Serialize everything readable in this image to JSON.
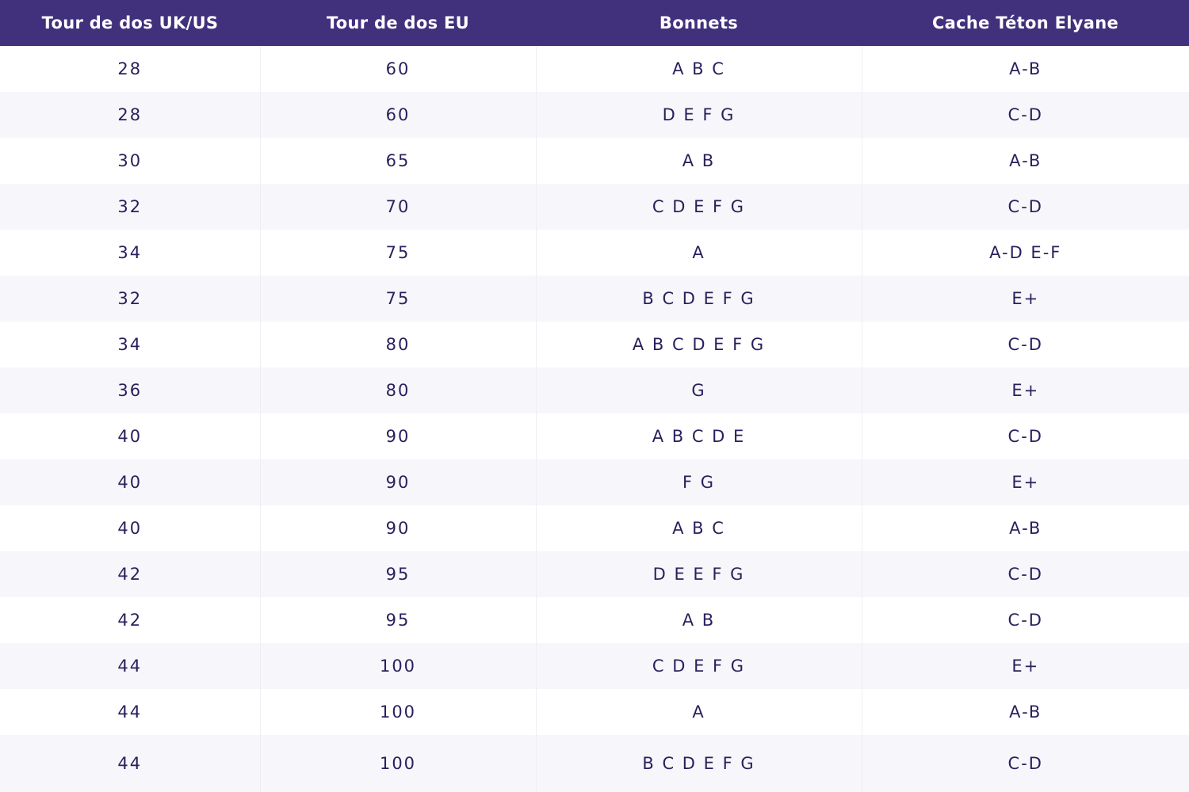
{
  "colors": {
    "header_bg": "#41317c",
    "header_text": "#ffffff",
    "cell_text": "#2a1f5c",
    "stripe": "#f7f6fa"
  },
  "table": {
    "headers": [
      "Tour de dos UK/US",
      "Tour de dos EU",
      "Bonnets",
      "Cache Téton Elyane"
    ],
    "rows": [
      [
        "28",
        "60",
        "A B C",
        "A-B"
      ],
      [
        "28",
        "60",
        "D E F G",
        "C-D"
      ],
      [
        "30",
        "65",
        "A B",
        "A-B"
      ],
      [
        "32",
        "70",
        "C D E F G",
        "C-D"
      ],
      [
        "34",
        "75",
        "A",
        "A-D E-F"
      ],
      [
        "32",
        "75",
        "B C D E F G",
        "E+"
      ],
      [
        "34",
        "80",
        "A B C D E F G",
        "C-D"
      ],
      [
        "36",
        "80",
        "G",
        "E+"
      ],
      [
        "40",
        "90",
        "A B C D E",
        "C-D"
      ],
      [
        "40",
        "90",
        "F G",
        "E+"
      ],
      [
        "40",
        "90",
        "A B C",
        "A-B"
      ],
      [
        "42",
        "95",
        "D E E F G",
        "C-D"
      ],
      [
        "42",
        "95",
        "A B",
        "C-D"
      ],
      [
        "44",
        "100",
        "C D E F G",
        "E+"
      ],
      [
        "44",
        "100",
        "A",
        "A-B"
      ],
      [
        "44",
        "100",
        "B C D E F G",
        "C-D"
      ]
    ]
  }
}
